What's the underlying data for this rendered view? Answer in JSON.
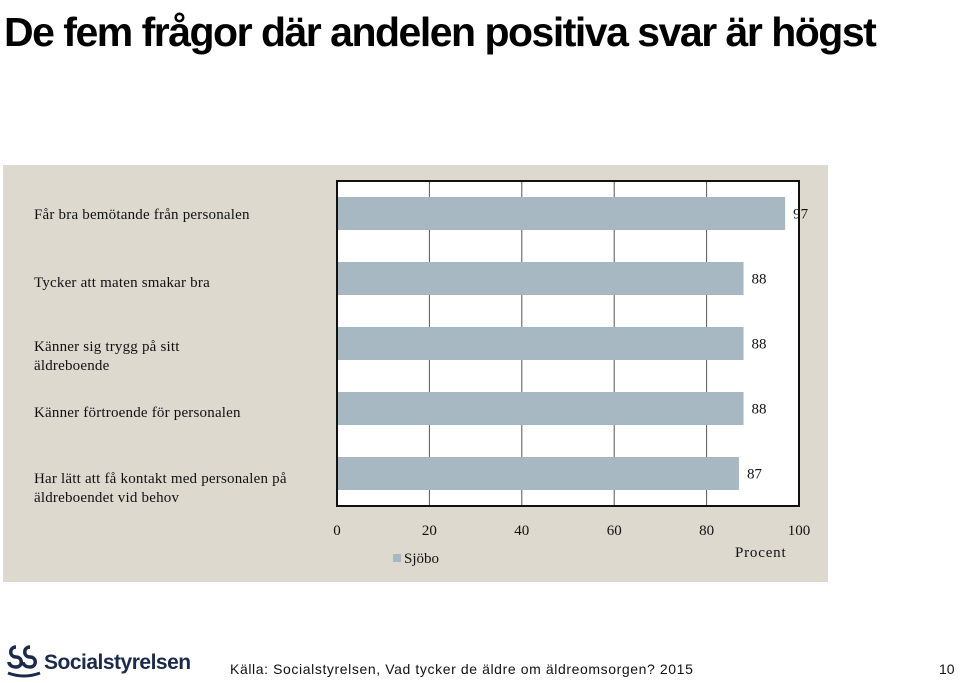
{
  "slide": {
    "title": "De fem frågor där andelen positiva svar är högst",
    "axis_title": "Procent",
    "legend_label": "Sjöbo",
    "source": "Källa: Socialstyrelsen, Vad tycker de äldre om äldreomsorgen? 2015",
    "page_number": "10",
    "logo_text": "Socialstyrelsen",
    "bar_color": "#a8b8c3",
    "panel_color": "#ddd9cf"
  },
  "chart_data": {
    "type": "bar",
    "orientation": "horizontal",
    "categories": [
      "Får bra bemötande från personalen",
      "Tycker att maten smakar bra",
      "Känner sig trygg på sitt äldreboende",
      "Känner förtroende för personalen",
      "Har lätt att få kontakt med personalen på äldreboendet vid behov"
    ],
    "series": [
      {
        "name": "Sjöbo",
        "values": [
          97,
          88,
          88,
          88,
          87
        ]
      }
    ],
    "xlim": [
      0,
      100
    ],
    "xticks": [
      0,
      20,
      40,
      60,
      80,
      100
    ],
    "xlabel": "Procent",
    "grid": true,
    "legend": "bottom"
  }
}
